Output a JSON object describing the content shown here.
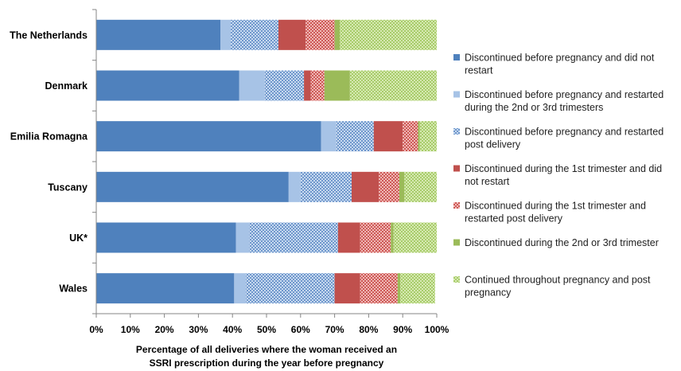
{
  "chart_data": {
    "type": "bar",
    "orientation": "horizontal",
    "stacked": true,
    "categories": [
      "The Netherlands",
      "Denmark",
      "Emilia Romagna",
      "Tuscany",
      "UK*",
      "Wales"
    ],
    "xlim": [
      0,
      100
    ],
    "x_ticks": [
      "0%",
      "10%",
      "20%",
      "30%",
      "40%",
      "50%",
      "60%",
      "70%",
      "80%",
      "90%",
      "100%"
    ],
    "xlabel": [
      "Percentage of all deliveries where the woman received an",
      "SSRI prescription during the year before pregnancy"
    ],
    "ylabel": "",
    "title": "",
    "grid": false,
    "legend_position": "right",
    "series": [
      {
        "name": "Discontinued before pregnancy and did not restart",
        "legend_lines": [
          "Discontinued before pregnancy and did not",
          "restart"
        ],
        "color": "#4f81bd",
        "pattern": "solid",
        "values": [
          36.5,
          42,
          66,
          56.5,
          41,
          40.5
        ]
      },
      {
        "name": "Discontinued before pregnancy and restarted during the 2nd or 3rd trimesters",
        "legend_lines": [
          "Discontinued before pregnancy and restarted",
          "during the 2nd or 3rd trimesters"
        ],
        "color": "#a7c3e6",
        "pattern": "light",
        "values": [
          3,
          7.5,
          4.5,
          3.5,
          4,
          3.5
        ]
      },
      {
        "name": "Discontinued before pregnancy and restarted post delivery",
        "legend_lines": [
          "Discontinued before pregnancy and restarted",
          "post delivery"
        ],
        "color": "#4f81bd",
        "pattern": "checker",
        "values": [
          14,
          11.5,
          11,
          15,
          26,
          26
        ]
      },
      {
        "name": "Discontinued during the 1st trimester and did not restart",
        "legend_lines": [
          "Discontinued during the 1st trimester and did",
          "not restart"
        ],
        "color": "#c0504d",
        "pattern": "solid",
        "values": [
          8,
          2,
          8.5,
          8,
          6.5,
          7.5
        ]
      },
      {
        "name": "Discontinued during the 1st trimester and restarted post delivery",
        "legend_lines": [
          "Discontinued during the 1st trimester and",
          "restarted post delivery"
        ],
        "color": "#d9807e",
        "pattern": "checker",
        "values": [
          8.5,
          4,
          4.5,
          6,
          9,
          11
        ]
      },
      {
        "name": "Discontinued during the 2nd or 3rd trimester",
        "legend_lines": [
          "Discontinued during the 2nd or 3rd trimester"
        ],
        "color": "#9bbb59",
        "pattern": "solid",
        "values": [
          1.5,
          7.5,
          0.5,
          1.5,
          0.8,
          0.8
        ]
      },
      {
        "name": "Continued throughout pregnancy and post pregnancy",
        "legend_lines": [
          "Continued throughout pregnancy and post",
          "pregnancy"
        ],
        "color": "#b5d67a",
        "pattern": "checker",
        "values": [
          28.5,
          25.5,
          5,
          9.5,
          12.7,
          10.2
        ]
      }
    ]
  }
}
